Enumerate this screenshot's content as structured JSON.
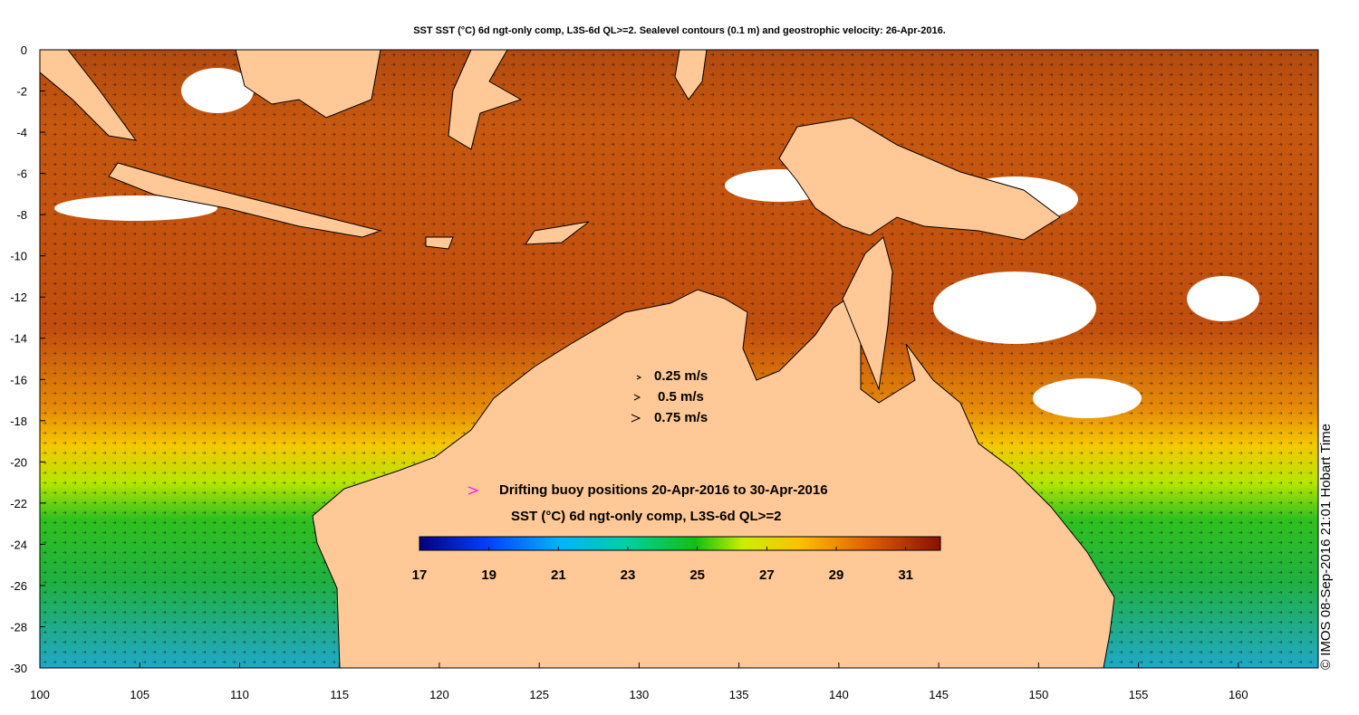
{
  "title": "SST SST (°C) 6d ngt-only comp, L3S-6d QL>=2. Sealevel contours (0.1 m) and geostrophic velocity: 26-Apr-2016.",
  "credit": "© IMOS 08-Sep-2016 21:01 Hobart Time",
  "velocity_legend": [
    "0.25 m/s",
    "0.5 m/s",
    "0.75 m/s"
  ],
  "buoy_label": "Drifting buoy positions 20-Apr-2016 to 30-Apr-2016",
  "colorbar_title": "SST (°C) 6d ngt-only comp, L3S-6d QL>=2",
  "colorbar_ticks": [
    "17",
    "19",
    "21",
    "23",
    "25",
    "27",
    "29",
    "31"
  ],
  "x_ticks": [
    "100",
    "105",
    "110",
    "115",
    "120",
    "125",
    "130",
    "135",
    "140",
    "145",
    "150",
    "155",
    "160"
  ],
  "y_ticks": [
    "0",
    "-2",
    "-4",
    "-6",
    "-8",
    "-10",
    "-12",
    "-14",
    "-16",
    "-18",
    "-20",
    "-22",
    "-24",
    "-26",
    "-28",
    "-30"
  ],
  "colors": {
    "land": "#ffc896",
    "buoy_marker": "#ff00ff",
    "contours": "#ffffff"
  },
  "x_range": [
    100,
    164
  ],
  "y_range": [
    -30,
    0
  ],
  "colorbar_range": [
    17,
    32
  ]
}
